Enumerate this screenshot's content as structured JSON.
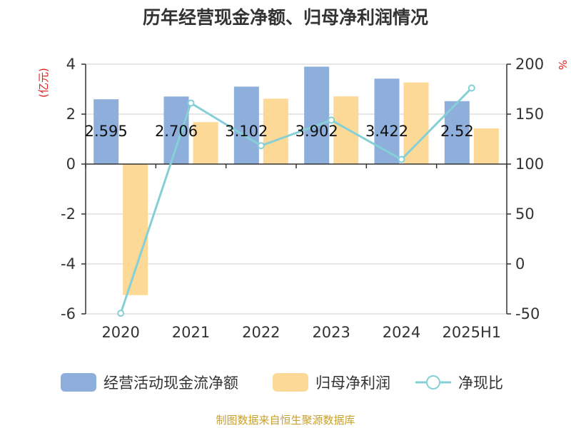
{
  "chart_data": {
    "type": "bar",
    "title": "历年经营现金净额、归母净利润情况",
    "categories": [
      "2020",
      "2021",
      "2022",
      "2023",
      "2024",
      "2025H1"
    ],
    "left_axis": {
      "unit": "(亿元)",
      "ylim": [
        -6,
        4
      ],
      "ticks": [
        "4",
        "2",
        "0",
        "-2",
        "-4",
        "-6"
      ]
    },
    "right_axis": {
      "unit": "%",
      "ylim": [
        -50,
        200
      ],
      "ticks": [
        "200",
        "150",
        "100",
        "50",
        "0",
        "-50"
      ]
    },
    "series": [
      {
        "name": "经营活动现金流净额",
        "kind": "bar",
        "axis": "left",
        "color": "#8eaedb",
        "values": [
          2.595,
          2.706,
          3.102,
          3.902,
          3.422,
          2.52
        ],
        "labels": [
          "2.595",
          "2.706",
          "3.102",
          "3.902",
          "3.422",
          "2.52"
        ]
      },
      {
        "name": "归母净利润",
        "kind": "bar",
        "axis": "left",
        "color": "#fdd998",
        "values": [
          -5.25,
          1.68,
          2.62,
          2.71,
          3.27,
          1.43
        ]
      },
      {
        "name": "净现比",
        "kind": "line",
        "axis": "right",
        "color": "#85d0d6",
        "values": [
          -49.4,
          161.1,
          118.4,
          144.0,
          104.6,
          176.2
        ]
      }
    ],
    "grid": true,
    "legend_position": "bottom"
  },
  "source": "制图数据来自恒生聚源数据库"
}
